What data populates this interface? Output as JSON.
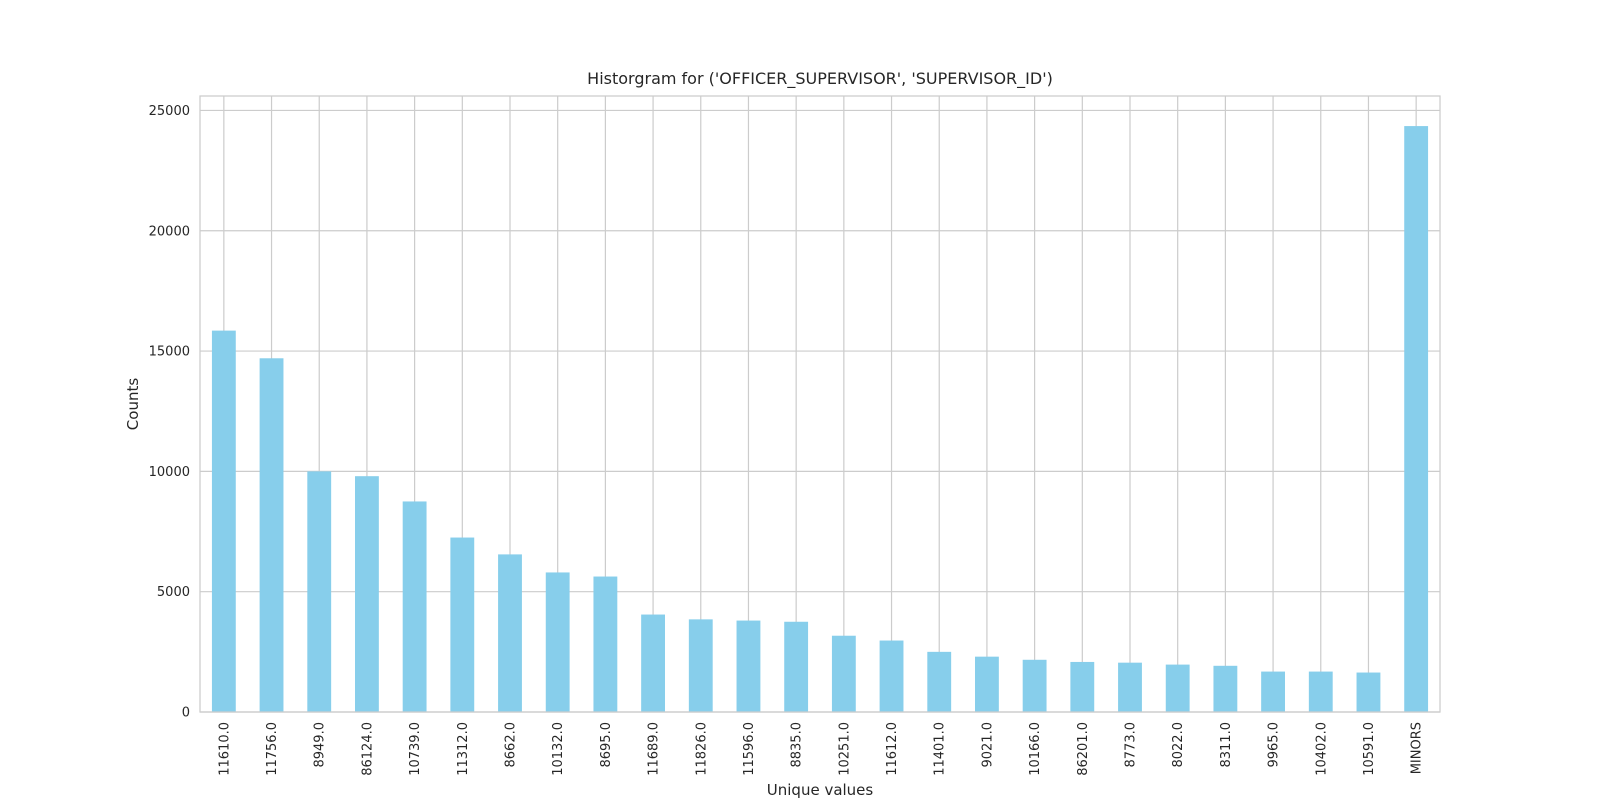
{
  "chart_data": {
    "type": "bar",
    "title": "Historgram for ('OFFICER_SUPERVISOR', 'SUPERVISOR_ID')",
    "xlabel": "Unique values",
    "ylabel": "Counts",
    "categories": [
      "11610.0",
      "11756.0",
      "8949.0",
      "86124.0",
      "10739.0",
      "11312.0",
      "8662.0",
      "10132.0",
      "8695.0",
      "11689.0",
      "11826.0",
      "11596.0",
      "8835.0",
      "10251.0",
      "11612.0",
      "11401.0",
      "9021.0",
      "10166.0",
      "86201.0",
      "8773.0",
      "8022.0",
      "8311.0",
      "9965.0",
      "10402.0",
      "10591.0",
      "MINORS"
    ],
    "values": [
      15850,
      14700,
      10000,
      9800,
      8750,
      7250,
      6550,
      5800,
      5630,
      4050,
      3850,
      3800,
      3750,
      3170,
      2970,
      2500,
      2300,
      2170,
      2080,
      2050,
      1970,
      1920,
      1680,
      1680,
      1640,
      24350
    ],
    "ylim": [
      0,
      25600
    ],
    "yticks": [
      0,
      5000,
      10000,
      15000,
      20000,
      25000
    ],
    "grid": true,
    "bar_color": "#87ceeb"
  }
}
